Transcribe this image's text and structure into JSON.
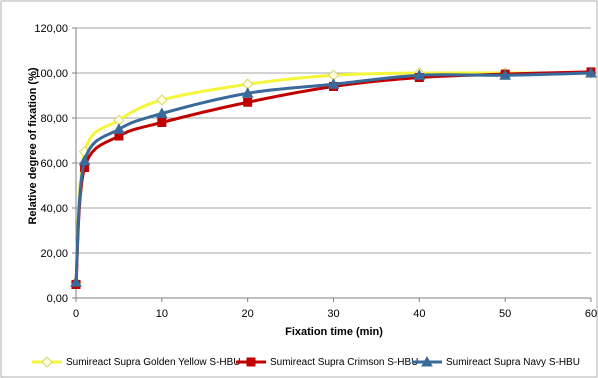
{
  "chart_data": {
    "type": "line",
    "xlabel": "Fixation time (min)",
    "ylabel": "Relative degree of fixation (%)",
    "xlim": [
      0,
      60
    ],
    "ylim": [
      0,
      120
    ],
    "xticks": [
      "0",
      "10",
      "20",
      "30",
      "40",
      "50",
      "60"
    ],
    "yticks": [
      "0,00",
      "20,00",
      "40,00",
      "60,00",
      "80,00",
      "100,00",
      "120,00"
    ],
    "grid": "horizontal",
    "legend_position": "bottom",
    "series": [
      {
        "name": "Sumireact Supra Golden Yellow S-HBU",
        "color": "#f5f53a",
        "marker": "diamond",
        "x": [
          0,
          1,
          5,
          10,
          20,
          30,
          40,
          50,
          60
        ],
        "y": [
          7,
          65,
          79,
          88,
          95,
          99,
          100,
          100,
          100
        ]
      },
      {
        "name": "Sumireact Supra Crimson S-HBU",
        "color": "#c00000",
        "marker": "square",
        "x": [
          0,
          1,
          5,
          10,
          20,
          30,
          40,
          50,
          60
        ],
        "y": [
          6,
          58,
          72,
          78,
          87,
          94,
          98,
          99.5,
          100.5
        ]
      },
      {
        "name": "Sumireact Supra Navy S-HBU",
        "color": "#3a6a9a",
        "marker": "triangle",
        "x": [
          0,
          1,
          5,
          10,
          20,
          30,
          40,
          50,
          60
        ],
        "y": [
          7,
          61,
          75,
          82,
          91,
          95,
          99,
          99,
          100
        ]
      }
    ]
  }
}
